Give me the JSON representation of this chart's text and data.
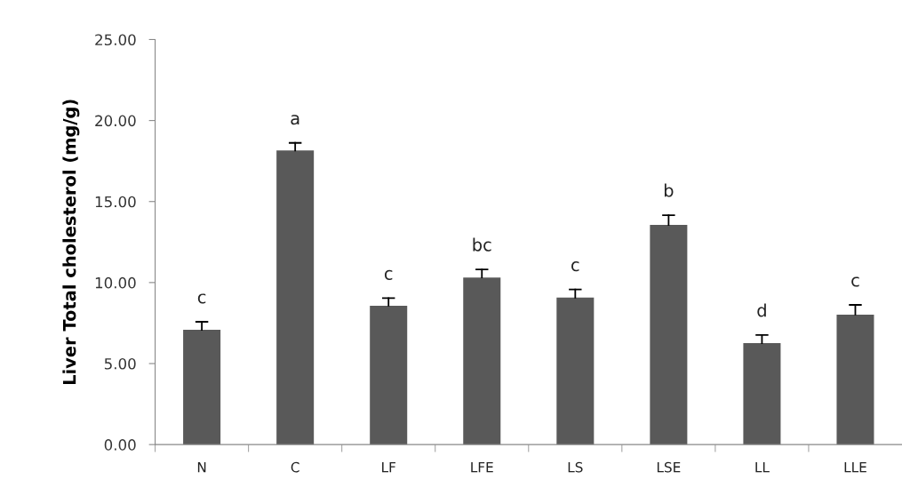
{
  "chart_data": {
    "type": "bar",
    "ylabel": "Liver Total cholesterol (mg/g)",
    "categories": [
      "N",
      "C",
      "LF",
      "LFE",
      "LS",
      "LSE",
      "LL",
      "LLE"
    ],
    "values": [
      7.08,
      18.15,
      8.57,
      10.31,
      9.07,
      13.56,
      6.26,
      8.02
    ],
    "errors": [
      [
        7.08,
        7.58
      ],
      [
        18.15,
        18.62
      ],
      [
        8.57,
        9.04
      ],
      [
        10.31,
        10.81
      ],
      [
        9.07,
        9.57
      ],
      [
        13.56,
        14.16
      ],
      [
        6.26,
        6.76
      ],
      [
        8.02,
        8.62
      ]
    ],
    "color": "#595959",
    "ylim": [
      0,
      25
    ],
    "yticks": [
      {
        "value": 0,
        "label": "0.00"
      },
      {
        "value": 5,
        "label": "5.00"
      },
      {
        "value": 10,
        "label": "10.00"
      },
      {
        "value": 15,
        "label": "15.00"
      },
      {
        "value": 20,
        "label": "20.00"
      },
      {
        "value": 25,
        "label": "25.00"
      }
    ],
    "grid": false,
    "legend": false,
    "annotations": [
      {
        "text": "c",
        "x": "N",
        "y": 7.08
      },
      {
        "text": "a",
        "x": "C",
        "y": 18.15
      },
      {
        "text": "c",
        "x": "LF",
        "y": 8.57
      },
      {
        "text": "bc",
        "x": "LFE",
        "y": 10.31
      },
      {
        "text": "c",
        "x": "LS",
        "y": 9.07
      },
      {
        "text": "b",
        "x": "LSE",
        "y": 13.56
      },
      {
        "text": "d",
        "x": "LL",
        "y": 6.26
      },
      {
        "text": "c",
        "x": "LLE",
        "y": 8.02
      }
    ]
  }
}
